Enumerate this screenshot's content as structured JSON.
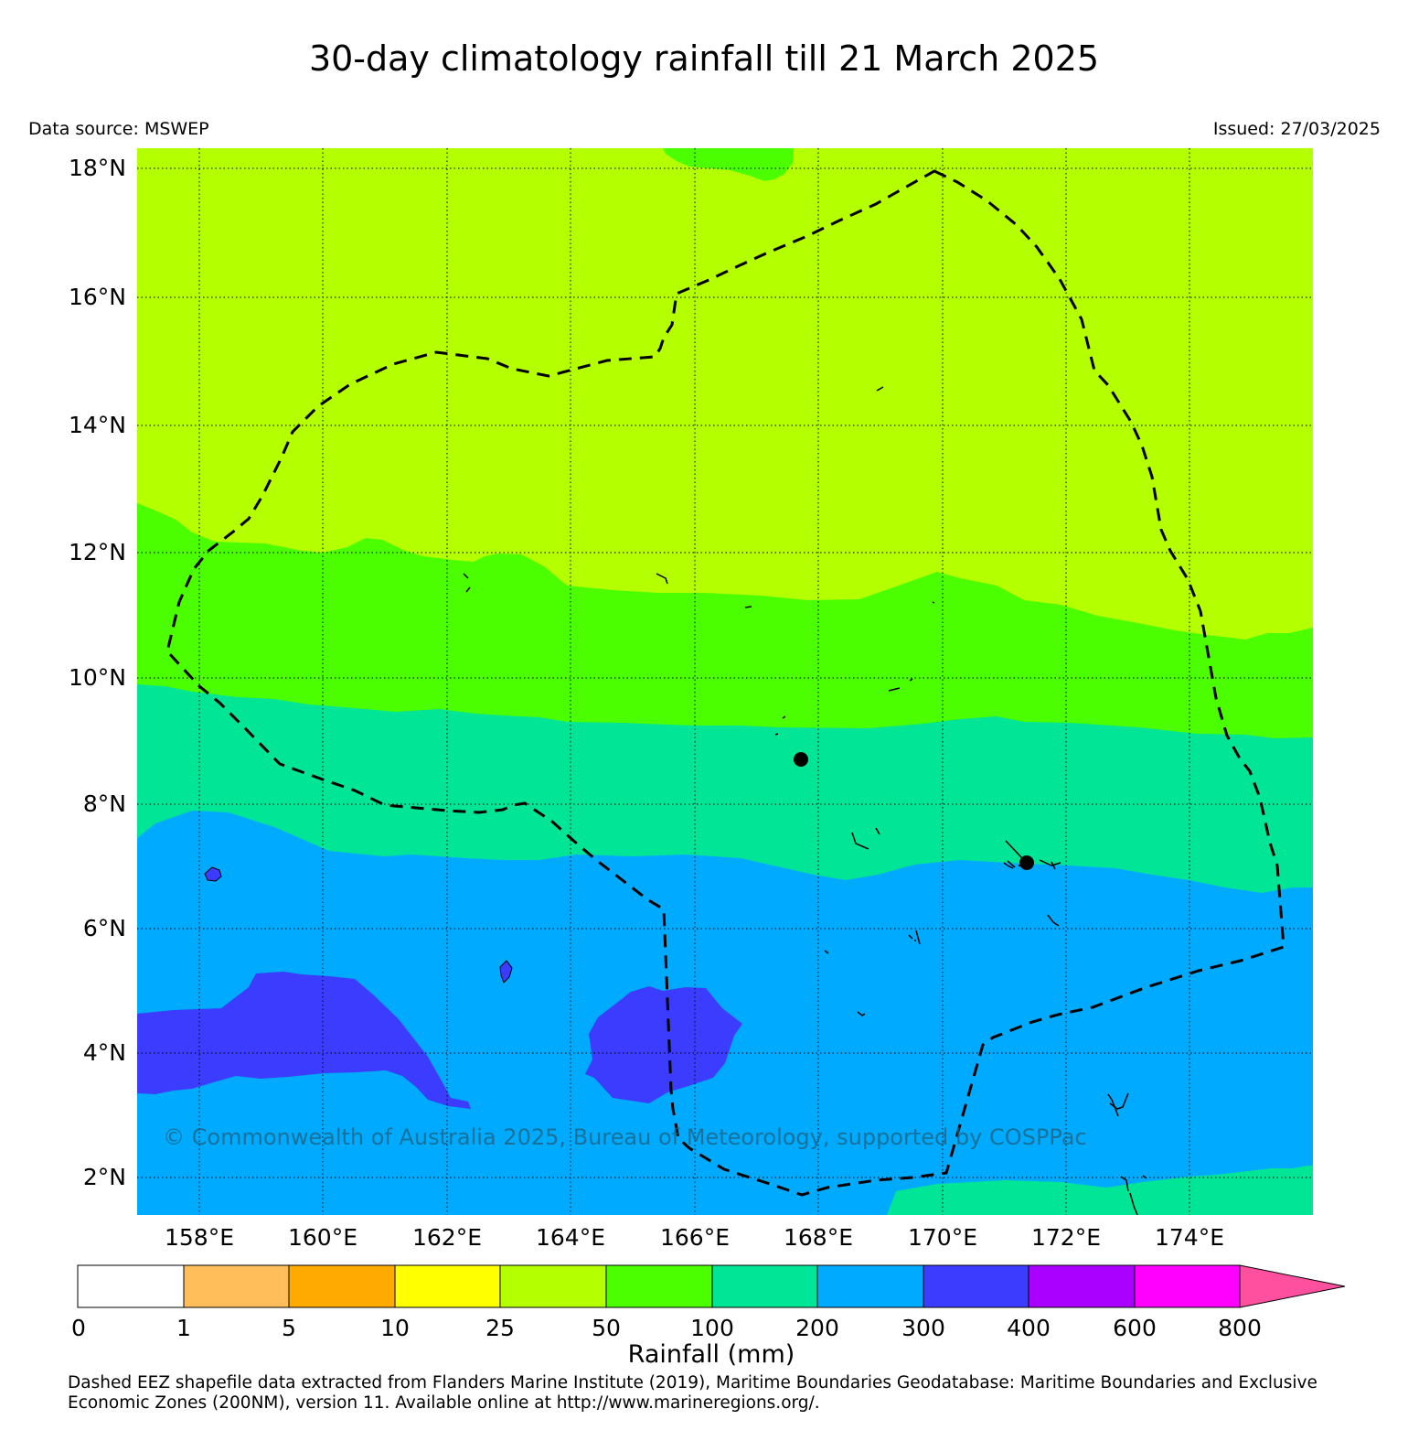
{
  "title": "30-day climatology rainfall till 21 March 2025",
  "data_source": "Data source: MSWEP",
  "issued": "Issued: 27/03/2025",
  "lat_labels": [
    "18°N",
    "16°N",
    "14°N",
    "12°N",
    "10°N",
    "8°N",
    "6°N",
    "4°N",
    "2°N"
  ],
  "lon_labels": [
    "158°E",
    "160°E",
    "162°E",
    "164°E",
    "166°E",
    "168°E",
    "170°E",
    "172°E",
    "174°E"
  ],
  "watermark": "© Commonwealth of Australia 2025, Bureau of Meteorology, supported by COSPPac",
  "colorbar": {
    "label": "Rainfall (mm)",
    "ticks": [
      "0",
      "1",
      "5",
      "10",
      "25",
      "50",
      "100",
      "200",
      "300",
      "400",
      "600",
      "800"
    ],
    "colors": [
      "#ffffff",
      "#ffbe5a",
      "#ffaa00",
      "#ffff00",
      "#b4ff00",
      "#4bff00",
      "#00e696",
      "#00aaff",
      "#3c3cff",
      "#aa00ff",
      "#ff00ff"
    ],
    "extend_color": "#ff50a0"
  },
  "footnote": "Dashed EEZ shapefile data extracted from Flanders Marine Institute (2019), Maritime Boundaries Geodatabase: Maritime Boundaries and Exclusive Economic Zones (200NM), version 11. Available online at http://www.marineregions.org/.",
  "map_data": {
    "type": "filled-contour-map",
    "lat_range": [
      1.4,
      18.3
    ],
    "lon_range": [
      157.0,
      175.9
    ],
    "zones_north_to_south": [
      {
        "range_mm": "25-50",
        "color": "#b4ff00"
      },
      {
        "range_mm": "50-100",
        "color": "#4bff00"
      },
      {
        "range_mm": "100-200",
        "color": "#00e696"
      },
      {
        "range_mm": "200-300",
        "color": "#00aaff"
      },
      {
        "range_mm": "300-400",
        "color": "#3c3cff"
      },
      {
        "range_mm": "100-200",
        "color": "#00e696"
      }
    ],
    "markers": [
      {
        "lat": 8.72,
        "lon": 167.73
      },
      {
        "lat": 7.09,
        "lon": 171.38
      }
    ],
    "eez_boundary": "dashed"
  }
}
